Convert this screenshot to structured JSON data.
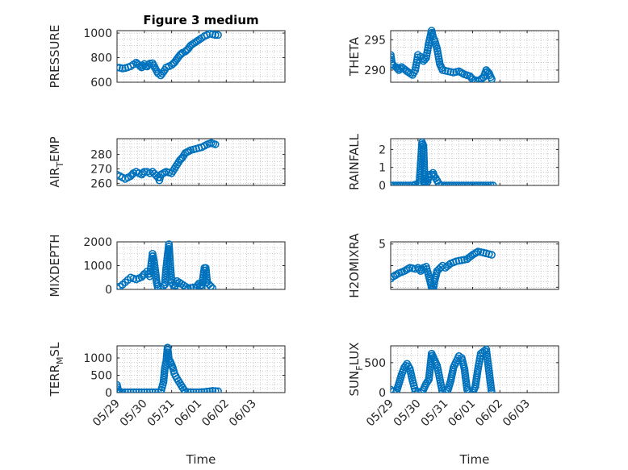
{
  "colors": {
    "marker": "#0072BD",
    "axis": "#262626",
    "grid": "#b0b0b0"
  },
  "chart_data": [
    {
      "type": "scatter",
      "title": "Figure 3 medium",
      "ylabel": "PRESSURE",
      "ylabel_sub": "",
      "ylim": [
        600,
        1020
      ],
      "yticks": [
        600,
        800,
        1000
      ],
      "ytick_labels": [
        "600",
        "800",
        "1000"
      ],
      "x_dates": [
        "05/29",
        "05/29",
        "05/29",
        "05/29",
        "05/29",
        "05/29",
        "05/29",
        "05/29",
        "05/29",
        "05/30",
        "05/30",
        "05/30",
        "05/30",
        "05/30",
        "05/30",
        "05/30",
        "05/30",
        "05/30",
        "05/31",
        "05/31",
        "05/31",
        "05/31",
        "05/31",
        "05/31",
        "05/31",
        "05/31",
        "06/01",
        "06/01",
        "06/01",
        "06/01",
        "06/01",
        "06/01",
        "06/01",
        "06/01",
        "06/02"
      ],
      "x": [
        0.0,
        0.1,
        0.2,
        0.3,
        0.4,
        0.5,
        0.6,
        0.7,
        0.8,
        0.9,
        1.0,
        1.05,
        1.1,
        1.2,
        1.3,
        1.5,
        1.6,
        1.75,
        1.8,
        2.0,
        2.1,
        2.2,
        2.3,
        2.4,
        2.5,
        2.6,
        2.7,
        2.9,
        3.1,
        3.2,
        3.3,
        3.4,
        3.5,
        3.6,
        3.7
      ],
      "y": [
        720,
        718,
        712,
        715,
        722,
        730,
        745,
        760,
        740,
        720,
        748,
        730,
        728,
        752,
        755,
        672,
        655,
        700,
        720,
        740,
        760,
        790,
        820,
        840,
        850,
        870,
        900,
        930,
        960,
        975,
        985,
        995,
        990,
        985,
        985
      ]
    },
    {
      "type": "scatter",
      "title": "",
      "ylabel": "THETA",
      "ylabel_sub": "",
      "ylim": [
        288,
        296.5
      ],
      "yticks": [
        290,
        295
      ],
      "ytick_labels": [
        "290",
        "295"
      ],
      "x_dates": [
        "05/29",
        "05/29",
        "05/29",
        "05/29",
        "05/29",
        "05/29",
        "05/29",
        "05/29",
        "05/30",
        "05/30",
        "05/30",
        "05/30",
        "05/30",
        "05/30",
        "05/30",
        "05/30",
        "05/30",
        "05/30",
        "05/30",
        "05/31",
        "05/31",
        "05/31",
        "05/31",
        "05/31",
        "06/01",
        "06/01",
        "06/01",
        "06/01",
        "06/01",
        "06/01",
        "06/01"
      ],
      "x": [
        0.0,
        0.05,
        0.1,
        0.2,
        0.3,
        0.4,
        0.6,
        0.8,
        0.9,
        1.0,
        1.1,
        1.2,
        1.3,
        1.4,
        1.5,
        1.55,
        1.6,
        1.7,
        1.8,
        1.9,
        2.1,
        2.3,
        2.5,
        2.7,
        2.9,
        3.0,
        3.2,
        3.4,
        3.5,
        3.6,
        3.7
      ],
      "y": [
        292.5,
        291.0,
        290.8,
        290.5,
        290.0,
        290.5,
        289.8,
        289.2,
        290.0,
        292.5,
        292.2,
        291.5,
        292.0,
        294.5,
        296.5,
        295.5,
        295.0,
        293.5,
        291.0,
        290.0,
        289.8,
        289.6,
        289.8,
        289.3,
        289.0,
        288.5,
        288.2,
        288.8,
        290.0,
        289.5,
        288.5
      ]
    },
    {
      "type": "scatter",
      "title": "",
      "ylabel": "AIR",
      "ylabel_sub": "T",
      "ylabel_tail": "EMP",
      "ylim": [
        258.5,
        291
      ],
      "yticks": [
        260,
        270,
        280
      ],
      "ytick_labels": [
        "260",
        "270",
        "280"
      ],
      "x_dates": [
        "05/29",
        "05/29",
        "05/29",
        "05/29",
        "05/29",
        "05/29",
        "05/29",
        "05/29",
        "05/29",
        "05/30",
        "05/30",
        "05/30",
        "05/30",
        "05/30",
        "05/30",
        "05/30",
        "05/30",
        "05/31",
        "05/31",
        "05/31",
        "05/31",
        "05/31",
        "05/31",
        "05/31",
        "06/01",
        "06/01",
        "06/01",
        "06/01",
        "06/01",
        "06/01",
        "06/01"
      ],
      "x": [
        0.0,
        0.1,
        0.2,
        0.3,
        0.4,
        0.5,
        0.6,
        0.7,
        0.8,
        0.9,
        1.0,
        1.1,
        1.2,
        1.3,
        1.5,
        1.55,
        1.6,
        1.8,
        2.0,
        2.1,
        2.2,
        2.3,
        2.4,
        2.5,
        2.7,
        2.9,
        3.1,
        3.2,
        3.3,
        3.45,
        3.6
      ],
      "y": [
        266,
        265,
        264,
        263,
        264,
        265,
        267,
        268,
        267,
        266,
        268,
        268,
        267,
        268,
        264,
        262,
        266,
        268,
        267,
        270,
        273,
        276,
        278,
        281,
        283,
        284,
        285,
        286,
        287,
        288,
        287
      ]
    },
    {
      "type": "scatter",
      "title": "",
      "ylabel": "RAINFALL",
      "ylabel_sub": "",
      "ylim": [
        0,
        2.6
      ],
      "yticks": [
        0,
        1,
        2
      ],
      "ytick_labels": [
        "0",
        "1",
        "2"
      ],
      "x_dates": [
        "05/29",
        "05/29",
        "05/29",
        "05/30",
        "05/30",
        "05/30",
        "05/30",
        "05/30",
        "05/30",
        "05/30",
        "05/30",
        "05/30",
        "05/30",
        "05/30",
        "05/30",
        "05/31",
        "05/31",
        "05/31",
        "06/01",
        "06/01",
        "06/02"
      ],
      "x": [
        0.0,
        0.4,
        0.8,
        1.0,
        1.05,
        1.15,
        1.2,
        1.25,
        1.3,
        1.35,
        1.4,
        1.5,
        1.55,
        1.6,
        1.65,
        1.8,
        2.2,
        2.6,
        3.0,
        3.4,
        3.75
      ],
      "y": [
        0,
        0,
        0,
        0.1,
        0.05,
        2.4,
        2.2,
        0.1,
        0.3,
        0.2,
        0.6,
        0.6,
        0.7,
        0.5,
        0.4,
        0,
        0,
        0,
        0,
        0,
        0
      ]
    },
    {
      "type": "scatter",
      "title": "",
      "ylabel": "MIXDEPTH",
      "ylabel_sub": "",
      "ylim": [
        0,
        2000
      ],
      "yticks": [
        0,
        1000,
        2000
      ],
      "ytick_labels": [
        "0",
        "1000",
        "2000"
      ],
      "x_dates": [
        "05/29",
        "05/29",
        "05/29",
        "05/29",
        "05/29",
        "05/29",
        "05/29",
        "05/29",
        "05/30",
        "05/30",
        "05/30",
        "05/30",
        "05/30",
        "05/30",
        "05/30",
        "05/30",
        "05/30",
        "05/30",
        "05/30",
        "05/31",
        "05/31",
        "05/31",
        "05/31",
        "05/31",
        "05/31",
        "05/31",
        "06/01",
        "06/01",
        "06/01",
        "06/01",
        "06/01",
        "06/01",
        "06/01",
        "06/01"
      ],
      "x": [
        0.0,
        0.1,
        0.2,
        0.3,
        0.4,
        0.5,
        0.7,
        0.9,
        1.0,
        1.1,
        1.2,
        1.3,
        1.35,
        1.4,
        1.45,
        1.5,
        1.6,
        1.7,
        1.75,
        1.8,
        1.85,
        1.9,
        1.95,
        2.0,
        2.1,
        2.2,
        2.6,
        2.9,
        3.0,
        3.1,
        3.2,
        3.25,
        3.3,
        3.5
      ],
      "y": [
        50,
        120,
        200,
        300,
        400,
        500,
        420,
        520,
        650,
        750,
        550,
        1500,
        1200,
        800,
        300,
        50,
        100,
        150,
        200,
        900,
        1400,
        1900,
        1000,
        300,
        80,
        350,
        50,
        100,
        250,
        80,
        900,
        900,
        300,
        50
      ]
    },
    {
      "type": "scatter",
      "title": "",
      "ylabel": "H2OMIXRA",
      "ylabel_sub": "",
      "ylim": [
        0.8,
        5.2
      ],
      "yticks": [
        1,
        3,
        5
      ],
      "ytick_labels": [
        "",
        "",
        "5"
      ],
      "x_dates": [
        "05/29",
        "05/29",
        "05/29",
        "05/29",
        "05/29",
        "05/29",
        "05/30",
        "05/30",
        "05/30",
        "05/30",
        "05/30",
        "05/30",
        "05/30",
        "05/30",
        "05/31",
        "05/31",
        "05/31",
        "05/31",
        "05/31",
        "06/01",
        "06/01",
        "06/01",
        "06/01",
        "06/01",
        "06/02"
      ],
      "x": [
        0.0,
        0.1,
        0.3,
        0.5,
        0.7,
        0.9,
        1.0,
        1.1,
        1.2,
        1.3,
        1.4,
        1.5,
        1.55,
        1.6,
        1.7,
        1.9,
        2.0,
        2.2,
        2.4,
        2.6,
        2.8,
        3.0,
        3.2,
        3.4,
        3.7
      ],
      "y": [
        1.8,
        2.0,
        2.3,
        2.5,
        2.8,
        2.7,
        2.8,
        2.5,
        2.8,
        2.9,
        2.0,
        1.0,
        0.6,
        1.5,
        2.5,
        3.0,
        2.8,
        3.2,
        3.4,
        3.5,
        3.6,
        4.0,
        4.3,
        4.2,
        4.0
      ]
    },
    {
      "type": "scatter",
      "title": "",
      "ylabel": "TERR",
      "ylabel_sub": "M",
      "ylabel_tail": "SL",
      "ylim": [
        0,
        1350
      ],
      "yticks": [
        0,
        500,
        1000
      ],
      "ytick_labels": [
        "0",
        "500",
        "1000"
      ],
      "x_dates": [
        "05/29",
        "05/29",
        "05/29",
        "05/29",
        "05/29",
        "05/30",
        "05/30",
        "05/30",
        "05/30",
        "05/30",
        "05/30",
        "05/30",
        "05/30",
        "05/30",
        "05/30",
        "05/30",
        "05/30",
        "05/31",
        "05/31",
        "05/31",
        "06/01",
        "06/01",
        "06/01",
        "06/01",
        "06/02"
      ],
      "x": [
        0.0,
        0.05,
        0.2,
        0.5,
        0.8,
        1.0,
        1.2,
        1.4,
        1.6,
        1.7,
        1.75,
        1.8,
        1.85,
        1.9,
        1.95,
        2.0,
        2.05,
        2.1,
        2.2,
        2.5,
        2.8,
        3.0,
        3.2,
        3.5,
        3.7
      ],
      "y": [
        220,
        30,
        10,
        10,
        10,
        10,
        10,
        10,
        10,
        300,
        700,
        900,
        1300,
        950,
        900,
        800,
        700,
        550,
        400,
        20,
        10,
        10,
        20,
        50,
        40
      ]
    },
    {
      "type": "scatter",
      "title": "",
      "ylabel": "SUN",
      "ylabel_sub": "F",
      "ylabel_tail": "LUX",
      "ylim": [
        0,
        780
      ],
      "yticks": [
        0,
        500
      ],
      "ytick_labels": [
        "0",
        "500"
      ],
      "x_dates": [
        "05/29",
        "05/29",
        "05/29",
        "05/29",
        "05/29",
        "05/29",
        "05/29",
        "05/29",
        "05/30",
        "05/30",
        "05/30",
        "05/30",
        "05/30",
        "05/30",
        "05/30",
        "05/30",
        "05/30",
        "05/31",
        "05/31",
        "05/31",
        "05/31",
        "05/31",
        "05/31",
        "06/01",
        "06/01",
        "06/01",
        "06/01",
        "06/01",
        "06/01",
        "06/01",
        "06/01",
        "06/01",
        "06/02"
      ],
      "x": [
        0.0,
        0.1,
        0.2,
        0.3,
        0.4,
        0.5,
        0.6,
        0.7,
        0.8,
        0.9,
        1.1,
        1.2,
        1.3,
        1.4,
        1.5,
        1.6,
        1.7,
        1.9,
        2.0,
        2.1,
        2.2,
        2.3,
        2.5,
        2.6,
        2.7,
        2.8,
        2.9,
        3.0,
        3.1,
        3.2,
        3.3,
        3.5,
        3.7
      ],
      "y": [
        50,
        20,
        0,
        150,
        300,
        420,
        480,
        400,
        200,
        30,
        0,
        50,
        150,
        220,
        650,
        550,
        450,
        0,
        0,
        50,
        200,
        420,
        610,
        580,
        400,
        50,
        0,
        0,
        100,
        400,
        650,
        720,
        0
      ]
    }
  ],
  "x_axis": {
    "ticks": [
      0,
      1,
      2,
      3,
      4,
      5
    ],
    "tick_labels": [
      "05/29",
      "05/30",
      "05/31",
      "06/01",
      "06/02",
      "06/03"
    ],
    "label": "Time"
  }
}
